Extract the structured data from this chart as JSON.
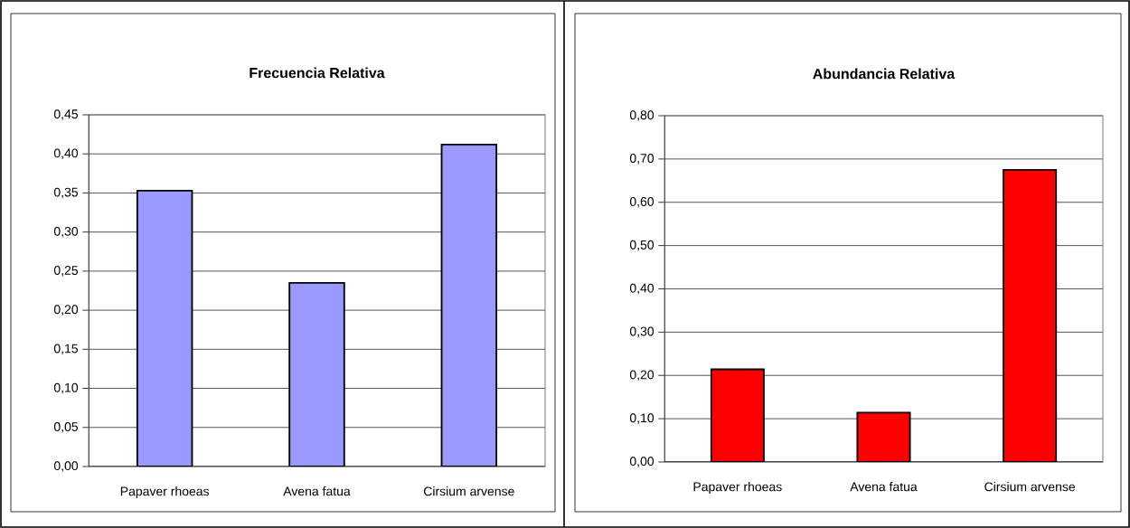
{
  "chart_data": [
    {
      "type": "bar",
      "title": "Frecuencia Relativa",
      "categories": [
        "Papaver rhoeas",
        "Avena fatua",
        "Cirsium arvense"
      ],
      "values": [
        0.353,
        0.235,
        0.412
      ],
      "color": "#9999ff",
      "ylim": [
        0,
        0.45
      ],
      "yticks": [
        {
          "value": 0,
          "label": "0,00"
        },
        {
          "value": 0.05,
          "label": "0,05"
        },
        {
          "value": 0.1,
          "label": "0,10"
        },
        {
          "value": 0.15,
          "label": "0,15"
        },
        {
          "value": 0.2,
          "label": "0,20"
        },
        {
          "value": 0.25,
          "label": "0,25"
        },
        {
          "value": 0.3,
          "label": "0,30"
        },
        {
          "value": 0.35,
          "label": "0,35"
        },
        {
          "value": 0.4,
          "label": "0,40"
        },
        {
          "value": 0.45,
          "label": "0,45"
        }
      ],
      "grid": "y"
    },
    {
      "type": "bar",
      "title": "Abundancia Relativa",
      "categories": [
        "Papaver rhoeas",
        "Avena fatua",
        "Cirsium arvense"
      ],
      "values": [
        0.214,
        0.114,
        0.675
      ],
      "color": "#ff0000",
      "ylim": [
        0,
        0.8
      ],
      "yticks": [
        {
          "value": 0,
          "label": "0,00"
        },
        {
          "value": 0.1,
          "label": "0,10"
        },
        {
          "value": 0.2,
          "label": "0,20"
        },
        {
          "value": 0.3,
          "label": "0,30"
        },
        {
          "value": 0.4,
          "label": "0,40"
        },
        {
          "value": 0.5,
          "label": "0,50"
        },
        {
          "value": 0.6,
          "label": "0,60"
        },
        {
          "value": 0.7,
          "label": "0,70"
        },
        {
          "value": 0.8,
          "label": "0,80"
        }
      ],
      "grid": "y"
    }
  ]
}
